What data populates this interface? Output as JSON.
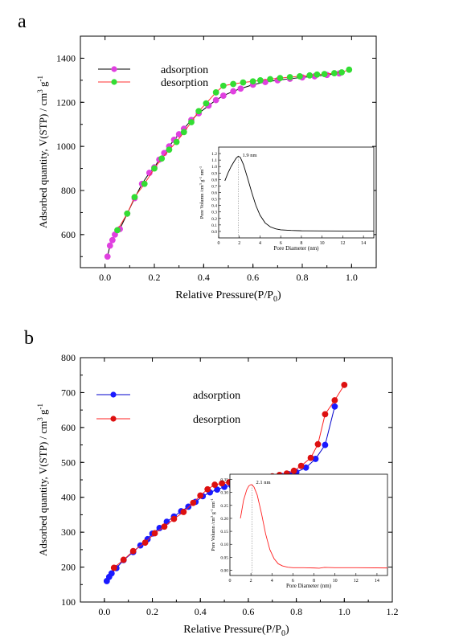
{
  "chart_data": [
    {
      "panel_label": "a",
      "type": "line",
      "xlabel": "Relative Pressure(P/P",
      "xlabel_sub": "0",
      "xlabel_end": ")",
      "ylabel": "Adsorbed quantity, V(STP) / cm",
      "ylabel_sup1": "3",
      "ylabel_mid": " g",
      "ylabel_sup2": "-1",
      "xlim": [
        -0.1,
        1.1
      ],
      "ylim": [
        450,
        1500
      ],
      "xticks": [
        "0.0",
        "0.2",
        "0.4",
        "0.6",
        "0.8",
        "1.0"
      ],
      "xtick_values": [
        0,
        0.2,
        0.4,
        0.6,
        0.8,
        1.0
      ],
      "yticks": [
        "600",
        "800",
        "1000",
        "1200",
        "1400"
      ],
      "ytick_values": [
        600,
        800,
        1000,
        1200,
        1400
      ],
      "legend_position": "top-left",
      "series": [
        {
          "name": "adsorption",
          "line_color": "#000000",
          "marker_color": "#e040e0",
          "x": [
            0.01,
            0.02,
            0.03,
            0.04,
            0.06,
            0.09,
            0.12,
            0.15,
            0.18,
            0.2,
            0.22,
            0.24,
            0.26,
            0.28,
            0.3,
            0.32,
            0.35,
            0.38,
            0.42,
            0.45,
            0.48,
            0.52,
            0.55,
            0.6,
            0.65,
            0.7,
            0.75,
            0.8,
            0.85,
            0.9,
            0.95
          ],
          "y": [
            500,
            550,
            575,
            600,
            625,
            695,
            765,
            830,
            880,
            905,
            940,
            970,
            1000,
            1030,
            1055,
            1080,
            1120,
            1150,
            1185,
            1210,
            1230,
            1250,
            1262,
            1280,
            1292,
            1300,
            1307,
            1313,
            1318,
            1324,
            1331
          ]
        },
        {
          "name": "desorption",
          "line_color": "#ff3030",
          "marker_color": "#33dd33",
          "x": [
            0.99,
            0.96,
            0.93,
            0.89,
            0.86,
            0.83,
            0.79,
            0.75,
            0.71,
            0.67,
            0.63,
            0.6,
            0.56,
            0.52,
            0.48,
            0.45,
            0.41,
            0.38,
            0.35,
            0.32,
            0.29,
            0.26,
            0.23,
            0.2,
            0.16,
            0.12,
            0.09,
            0.05
          ],
          "y": [
            1348,
            1336,
            1332,
            1328,
            1326,
            1322,
            1318,
            1314,
            1310,
            1305,
            1300,
            1295,
            1290,
            1283,
            1275,
            1245,
            1195,
            1160,
            1110,
            1065,
            1020,
            985,
            945,
            900,
            830,
            770,
            695,
            620
          ]
        }
      ],
      "inset": {
        "type": "line",
        "xlabel": "Pore Diameter  (nm)",
        "ylabel": "Pore Volumn /cm",
        "ylabel_sup1": "3",
        "ylabel_mid": " g",
        "ylabel_sup2": "-1",
        "ylabel_mid2": " nm",
        "ylabel_sup3": "-1",
        "xlim": [
          0,
          15
        ],
        "ylim": [
          -0.1,
          1.3
        ],
        "xticks": [
          "0",
          "2",
          "4",
          "6",
          "8",
          "10",
          "12",
          "14"
        ],
        "xtick_values": [
          0,
          2,
          4,
          6,
          8,
          10,
          12,
          14
        ],
        "yticks": [
          "0.0",
          "0.1",
          "0.2",
          "0.3",
          "0.4",
          "0.5",
          "0.6",
          "0.7",
          "0.8",
          "0.9",
          "1.0",
          "1.1",
          "1.2"
        ],
        "ytick_values": [
          0,
          0.1,
          0.2,
          0.3,
          0.4,
          0.5,
          0.6,
          0.7,
          0.8,
          0.9,
          1.0,
          1.1,
          1.2
        ],
        "annotation": "1.9 nm",
        "peak_x": 1.9,
        "line_color": "#000000",
        "x": [
          0.6,
          0.9,
          1.2,
          1.5,
          1.7,
          1.9,
          2.1,
          2.4,
          2.8,
          3.2,
          3.6,
          4.0,
          4.5,
          5.0,
          5.5,
          6.0,
          7.0,
          8.0,
          10.0,
          12.0,
          15.0
        ],
        "y": [
          0.78,
          0.9,
          1.0,
          1.08,
          1.13,
          1.16,
          1.14,
          1.03,
          0.82,
          0.6,
          0.4,
          0.25,
          0.13,
          0.07,
          0.04,
          0.025,
          0.015,
          0.01,
          0.008,
          0.006,
          0.005
        ]
      }
    },
    {
      "panel_label": "b",
      "type": "line",
      "xlabel": "Relative Pressure(P/P",
      "xlabel_sub": "0",
      "xlabel_end": ")",
      "ylabel": "Adsorbed quantity, V(STP) / cm",
      "ylabel_sup1": "3",
      "ylabel_mid": " g",
      "ylabel_sup2": "-1",
      "xlim": [
        -0.1,
        1.2
      ],
      "ylim": [
        100,
        800
      ],
      "xticks": [
        "0.0",
        "0.2",
        "0.4",
        "0.6",
        "0.8",
        "1.0",
        "1.2"
      ],
      "xtick_values": [
        0,
        0.2,
        0.4,
        0.6,
        0.8,
        1.0,
        1.2
      ],
      "yticks": [
        "100",
        "200",
        "300",
        "400",
        "500",
        "600",
        "700",
        "800"
      ],
      "ytick_values": [
        100,
        200,
        300,
        400,
        500,
        600,
        700,
        800
      ],
      "legend_position": "top-left",
      "series": [
        {
          "name": "adsorption",
          "line_color": "#0000cc",
          "marker_color": "#1a1aff",
          "x": [
            0.01,
            0.02,
            0.03,
            0.05,
            0.08,
            0.12,
            0.15,
            0.18,
            0.2,
            0.23,
            0.26,
            0.29,
            0.32,
            0.35,
            0.38,
            0.41,
            0.44,
            0.47,
            0.5,
            0.53,
            0.56,
            0.59,
            0.62,
            0.65,
            0.68,
            0.71,
            0.74,
            0.77,
            0.8,
            0.84,
            0.88,
            0.92,
            0.96
          ],
          "y": [
            160,
            172,
            182,
            197,
            220,
            243,
            262,
            280,
            296,
            312,
            330,
            345,
            360,
            373,
            387,
            403,
            414,
            422,
            430,
            434,
            438,
            442,
            445,
            449,
            453,
            457,
            461,
            466,
            472,
            485,
            510,
            550,
            660
          ]
        },
        {
          "name": "desorption",
          "line_color": "#ff2020",
          "marker_color": "#dd1010",
          "x": [
            1.0,
            0.96,
            0.92,
            0.89,
            0.86,
            0.82,
            0.79,
            0.76,
            0.73,
            0.7,
            0.67,
            0.64,
            0.61,
            0.58,
            0.55,
            0.52,
            0.49,
            0.46,
            0.43,
            0.4,
            0.37,
            0.33,
            0.29,
            0.25,
            0.21,
            0.17,
            0.12,
            0.08,
            0.04
          ],
          "y": [
            722,
            678,
            638,
            552,
            513,
            490,
            476,
            468,
            464,
            460,
            456,
            452,
            450,
            448,
            445,
            443,
            440,
            436,
            423,
            405,
            384,
            358,
            338,
            316,
            297,
            270,
            246,
            221,
            198
          ]
        }
      ],
      "inset": {
        "type": "line",
        "xlabel": "Pore Diameter  (nm)",
        "ylabel": "Pore Volumn /cm",
        "ylabel_sup1": "3",
        "ylabel_mid": " g",
        "ylabel_sup2": "-1",
        "ylabel_mid2": " nm",
        "ylabel_sup3": "-1",
        "xlim": [
          0,
          15
        ],
        "ylim": [
          -0.02,
          0.37
        ],
        "xticks": [
          "0",
          "2",
          "4",
          "6",
          "8",
          "10",
          "12",
          "14"
        ],
        "xtick_values": [
          0,
          2,
          4,
          6,
          8,
          10,
          12,
          14
        ],
        "yticks": [
          "0.00",
          "0.05",
          "0.10",
          "0.15",
          "0.20",
          "0.25",
          "0.30",
          "0.35"
        ],
        "ytick_values": [
          0,
          0.05,
          0.1,
          0.15,
          0.2,
          0.25,
          0.3,
          0.35
        ],
        "annotation": "2.1 nm",
        "peak_x": 2.1,
        "line_color": "#ff2020",
        "x": [
          1.0,
          1.3,
          1.6,
          1.8,
          2.0,
          2.1,
          2.3,
          2.6,
          3.0,
          3.4,
          3.8,
          4.2,
          4.6,
          5.0,
          5.5,
          6.0,
          7.0,
          8.0,
          8.5,
          9.0,
          10.0,
          12.0,
          15.0
        ],
        "y": [
          0.2,
          0.27,
          0.31,
          0.325,
          0.33,
          0.33,
          0.32,
          0.29,
          0.22,
          0.14,
          0.08,
          0.045,
          0.025,
          0.017,
          0.012,
          0.01,
          0.01,
          0.009,
          0.008,
          0.011,
          0.01,
          0.01,
          0.009
        ]
      }
    }
  ]
}
